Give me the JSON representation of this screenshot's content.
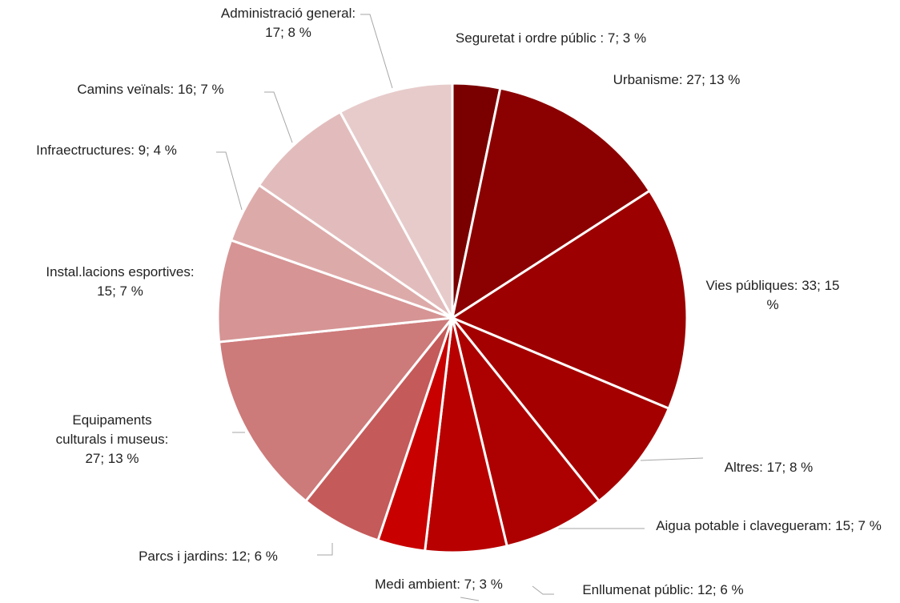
{
  "chart_data": {
    "type": "pie",
    "categories": [
      "Seguretat i ordre públic",
      "Urbanisme",
      "Vies públiques",
      "Altres",
      "Aigua potable i clavegueram",
      "Enllumenat públic",
      "Medi ambient",
      "Parcs i jardins",
      "Equipaments culturals i museus",
      "Instal.lacions esportives",
      "Infraectructures",
      "Camins veïnals",
      "Administració general"
    ],
    "values": [
      7,
      27,
      33,
      17,
      15,
      12,
      7,
      12,
      27,
      15,
      9,
      16,
      17
    ],
    "value_labels": [
      "Seguretat i ordre públic : 7; 3 %",
      "Urbanisme: 27; 13 %",
      "Vies públiques: 33; 15 %",
      "Altres: 17; 8 %",
      "Aigua potable i clavegueram: 15; 7 %",
      "Enllumenat públic: 12; 6 %",
      "Medi ambient: 7; 3 %",
      "Parcs i jardins: 12; 6 %",
      "Equipaments culturals i museus: 27; 13 %",
      "Instal.lacions esportives: 15; 7 %",
      "Infraectructures: 9; 4 %",
      "Camins veïnals: 16; 7 %",
      "Administració general: 17; 8 %"
    ],
    "colors": [
      "#7a0000",
      "#8b0000",
      "#9c0000",
      "#a50000",
      "#ad0000",
      "#b80000",
      "#c80000",
      "#c55a5a",
      "#cd7a7a",
      "#d69494",
      "#ddaaaa",
      "#e2bcbc",
      "#e7cbcb"
    ]
  }
}
